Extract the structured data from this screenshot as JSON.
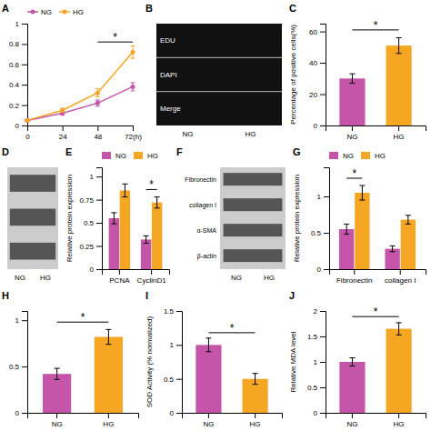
{
  "chart_data": [
    {
      "type": "line",
      "title": "A",
      "x": [
        0,
        24,
        48,
        72
      ],
      "xlim": [
        0,
        72
      ],
      "xticks": [
        0,
        24,
        48,
        {
          "value": 72,
          "label": "72(h)"
        }
      ],
      "ylim": [
        0,
        1
      ],
      "yticks": [
        0,
        0.2,
        0.4,
        0.6,
        0.8,
        1
      ],
      "series": [
        {
          "name": "NG",
          "color": "#c455a8",
          "marker": "circle",
          "values": [
            0.05,
            0.12,
            0.22,
            0.38
          ],
          "errors": [
            0.01,
            0.02,
            0.03,
            0.04
          ]
        },
        {
          "name": "HG",
          "color": "#f5a623",
          "marker": "circle",
          "values": [
            0.05,
            0.15,
            0.32,
            0.72
          ],
          "errors": [
            0.01,
            0.02,
            0.04,
            0.06
          ]
        }
      ],
      "legend": "upper left",
      "annotations": [
        {
          "text": "*",
          "x": [
            48,
            72
          ],
          "y": 0.82
        }
      ]
    },
    {
      "type": "image",
      "title": "B",
      "categories": [
        "NG",
        "HG"
      ],
      "annotations": [
        "EDU",
        "DAPI",
        "Merge"
      ]
    },
    {
      "type": "bar",
      "title": "C",
      "categories": [
        "NG",
        "HG"
      ],
      "values": [
        30,
        51
      ],
      "errors": [
        3,
        5
      ],
      "colors": [
        "#c455a8",
        "#f5a623"
      ],
      "ylabel": "Percentage of positive cells(%)",
      "ylim": [
        0,
        65
      ],
      "yticks": [
        0,
        20,
        40,
        60
      ],
      "annotations": [
        {
          "text": "*",
          "x": [
            "NG",
            "HG"
          ],
          "y": 61
        }
      ]
    },
    {
      "type": "blot",
      "title": "D",
      "categories": [
        "NG",
        "HG"
      ]
    },
    {
      "type": "bar",
      "title": "E",
      "categories": [
        "PCNA",
        "CyclinD1"
      ],
      "series": [
        {
          "name": "NG",
          "color": "#c455a8",
          "values": [
            0.55,
            0.32
          ],
          "errors": [
            0.06,
            0.04
          ]
        },
        {
          "name": "HG",
          "color": "#f5a623",
          "values": [
            0.85,
            0.72
          ],
          "errors": [
            0.07,
            0.06
          ]
        }
      ],
      "ylabel": "Relative protein expression",
      "ylim": [
        0,
        1.1
      ],
      "yticks": [
        0,
        0.25,
        0.5,
        0.75,
        1
      ],
      "legend": "upper left",
      "annotations": [
        {
          "text": "*",
          "x": "CyclinD1",
          "y": 0.86
        }
      ]
    },
    {
      "type": "blot",
      "title": "F",
      "categories": [
        "NG",
        "HG"
      ],
      "annotations": [
        "Fibronectin",
        "collagen I",
        "α-SMA",
        "β-actin"
      ]
    },
    {
      "type": "bar",
      "title": "G",
      "categories": [
        "Fibronectin",
        "collagen I"
      ],
      "series": [
        {
          "name": "NG",
          "color": "#c455a8",
          "values": [
            0.55,
            0.28
          ],
          "errors": [
            0.07,
            0.04
          ]
        },
        {
          "name": "HG",
          "color": "#f5a623",
          "values": [
            1.05,
            0.68
          ],
          "errors": [
            0.1,
            0.06
          ]
        }
      ],
      "ylabel": "Relative protein expression",
      "ylim": [
        0,
        1.4
      ],
      "yticks": [
        0,
        0.5,
        1
      ],
      "legend": "upper left",
      "annotations": [
        {
          "text": "*",
          "x": "Fibronectin",
          "y": 1.25
        }
      ]
    },
    {
      "type": "bar",
      "title": "H",
      "categories": [
        "NG",
        "HG"
      ],
      "values": [
        0.42,
        0.82
      ],
      "errors": [
        0.06,
        0.08
      ],
      "colors": [
        "#c455a8",
        "#f5a623"
      ],
      "ylim": [
        0,
        1.1
      ],
      "yticks": [
        0,
        0.5,
        1
      ],
      "annotations": [
        {
          "text": "*",
          "x": [
            "NG",
            "HG"
          ],
          "y": 0.98
        }
      ]
    },
    {
      "type": "bar",
      "title": "I",
      "categories": [
        "NG",
        "HG"
      ],
      "values": [
        1,
        0.5
      ],
      "errors": [
        0.1,
        0.08
      ],
      "colors": [
        "#c455a8",
        "#f5a623"
      ],
      "ylabel": "SOD Activity (% normalized)",
      "ylim": [
        0,
        1.5
      ],
      "yticks": [
        0,
        0.5,
        1,
        1.5
      ],
      "annotations": [
        {
          "text": "*",
          "x": [
            "NG",
            "HG"
          ],
          "y": 1.18
        }
      ]
    },
    {
      "type": "bar",
      "title": "J",
      "categories": [
        "NG",
        "HG"
      ],
      "values": [
        1,
        1.65
      ],
      "errors": [
        0.08,
        0.12
      ],
      "colors": [
        "#c455a8",
        "#f5a623"
      ],
      "ylabel": "Relative MDA level",
      "ylim": [
        0,
        2
      ],
      "yticks": [
        0,
        0.5,
        1,
        1.5,
        2
      ],
      "annotations": [
        {
          "text": "*",
          "x": [
            "NG",
            "HG"
          ],
          "y": 1.89
        }
      ]
    }
  ]
}
